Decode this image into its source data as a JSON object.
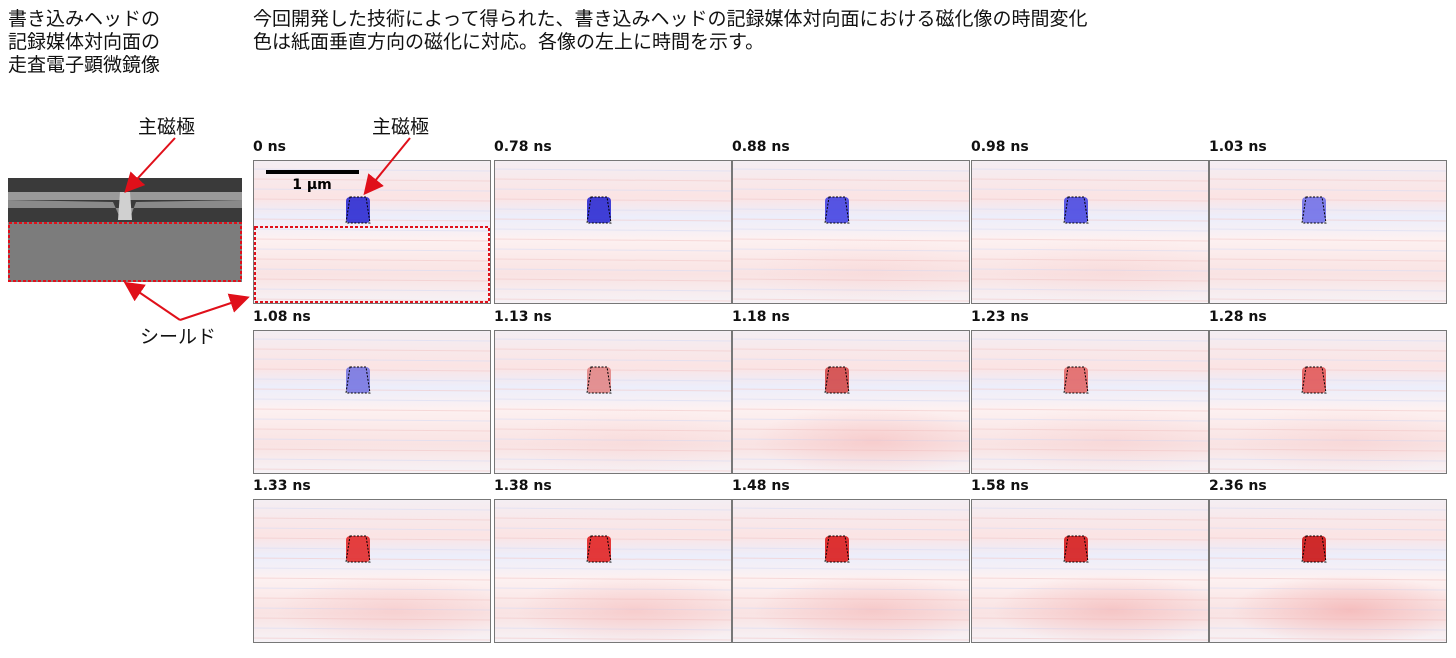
{
  "left_caption": [
    "書き込みヘッドの",
    "記録媒体対向面の",
    "走査電子顕微鏡像"
  ],
  "right_caption": [
    "今回開発した技術によって得られた、書き込みヘッドの記録媒体対向面における磁化像の時間変化",
    "色は紙面垂直方向の磁化に対応。各像の左上に時間を示す。"
  ],
  "labels": {
    "main_pole_left": "主磁極",
    "main_pole_right": "主磁極",
    "shield": "シールド"
  },
  "scale_bar": "1 µm",
  "panels": [
    {
      "time": "0 ns"
    },
    {
      "time": "0.78 ns"
    },
    {
      "time": "0.88 ns"
    },
    {
      "time": "0.98 ns"
    },
    {
      "time": "1.03 ns"
    },
    {
      "time": "1.08 ns"
    },
    {
      "time": "1.13 ns"
    },
    {
      "time": "1.18 ns"
    },
    {
      "time": "1.23 ns"
    },
    {
      "time": "1.28 ns"
    },
    {
      "time": "1.33 ns"
    },
    {
      "time": "1.38 ns"
    },
    {
      "time": "1.48 ns"
    },
    {
      "time": "1.58 ns"
    },
    {
      "time": "2.36 ns"
    }
  ]
}
